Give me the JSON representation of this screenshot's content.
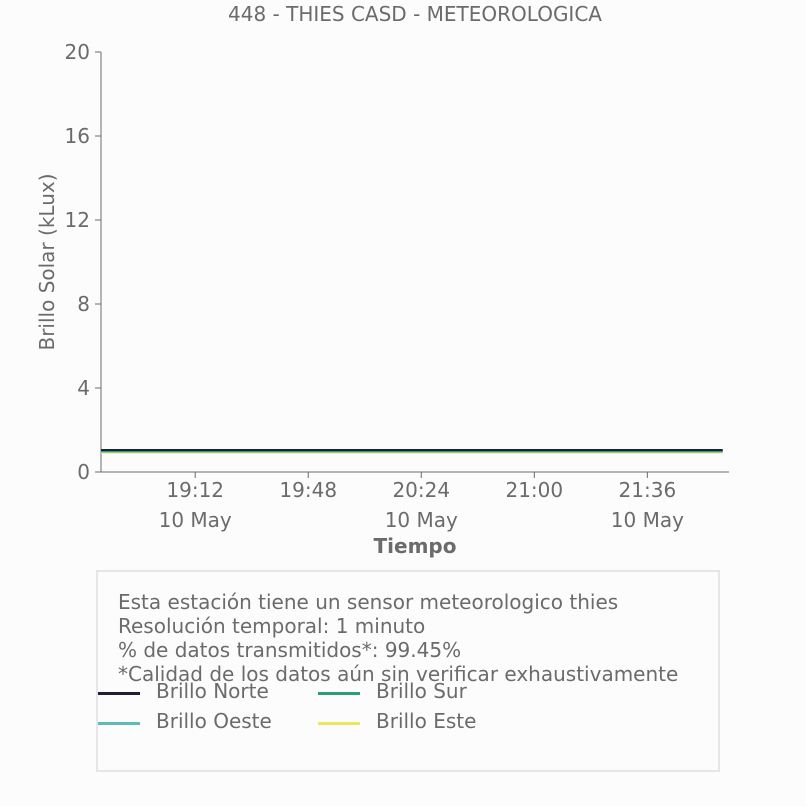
{
  "chart_data": {
    "type": "line",
    "title": "448 - THIES CASD - METEOROLOGICA",
    "xlabel": "Tiempo",
    "ylabel": "Brillo Solar (kLux)",
    "ylim": [
      0,
      20
    ],
    "yticks": [
      "0",
      "4",
      "8",
      "12",
      "16",
      "20"
    ],
    "xlim": [
      "18:42",
      "22:02"
    ],
    "xticks": [
      {
        "time": "19:12",
        "date": "10 May"
      },
      {
        "time": "19:48",
        "date": ""
      },
      {
        "time": "20:24",
        "date": "10 May"
      },
      {
        "time": "21:00",
        "date": ""
      },
      {
        "time": "21:36",
        "date": "10 May"
      }
    ],
    "grid": false,
    "legend_position": "bottom",
    "series": [
      {
        "name": "Brillo Norte",
        "color": "#1f1f3a",
        "x": [
          "18:42",
          "22:00"
        ],
        "values": [
          1.05,
          1.05
        ]
      },
      {
        "name": "Brillo Sur",
        "color": "#2a9d7c",
        "x": [
          "18:42",
          "22:00"
        ],
        "values": [
          1.0,
          1.0
        ]
      },
      {
        "name": "Brillo Oeste",
        "color": "#5bbcb8",
        "x": [
          "18:42",
          "22:00"
        ],
        "values": [
          0.97,
          0.97
        ]
      },
      {
        "name": "Brillo Este",
        "color": "#ede55a",
        "x": [
          "18:42",
          "22:00"
        ],
        "values": [
          0.93,
          0.93
        ]
      }
    ]
  },
  "info": {
    "lines": [
      "Esta estación tiene un sensor meteorologico thies",
      "Resolución temporal: 1 minuto",
      "% de datos transmitidos*: 99.45%",
      "*Calidad de los datos aún sin verificar exhaustivamente"
    ]
  }
}
